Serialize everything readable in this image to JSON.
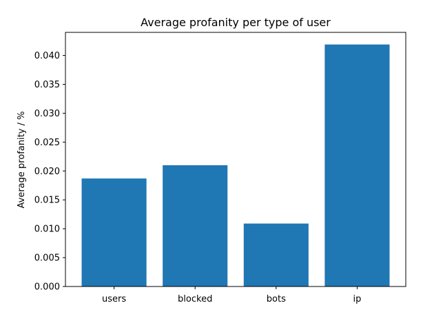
{
  "chart_data": {
    "type": "bar",
    "title": "Average profanity per type of user",
    "xlabel": "",
    "ylabel": "Average profanity / %",
    "categories": [
      "users",
      "blocked",
      "bots",
      "ip"
    ],
    "values": [
      0.0187,
      0.021,
      0.0109,
      0.0419
    ],
    "ylim": [
      0,
      0.044
    ],
    "yticks": [
      "0.000",
      "0.005",
      "0.010",
      "0.015",
      "0.020",
      "0.025",
      "0.030",
      "0.035",
      "0.040"
    ],
    "bar_color": "#1f77b4",
    "grid": false
  }
}
